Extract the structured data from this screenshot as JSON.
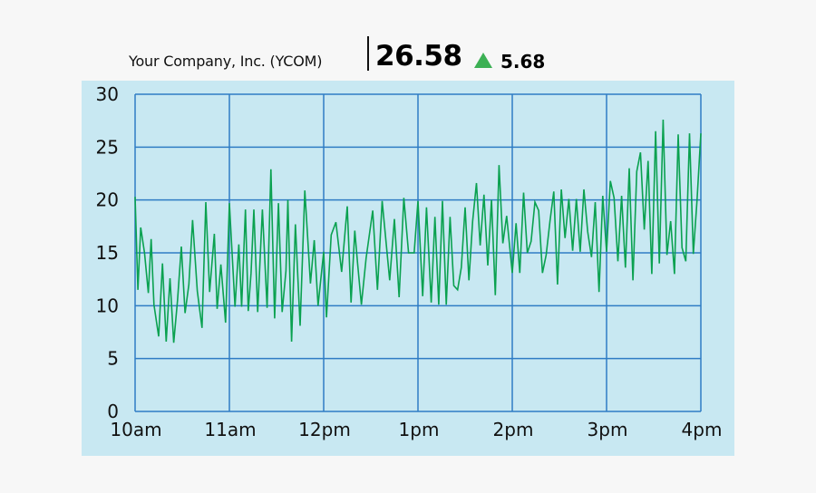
{
  "header": {
    "company": "Your Company, Inc. (YCOM)",
    "price": "26.58",
    "change": "5.68",
    "change_direction_icon": "triangle-up-icon",
    "change_color": "#3cb054"
  },
  "colors": {
    "panel_bg": "#c8e8f2",
    "grid": "#2f7cc4",
    "line": "#0aa150",
    "page_bg": "#f7f7f7"
  },
  "chart_data": {
    "type": "line",
    "title": "Your Company, Inc. (YCOM) 26.58 ▲ 5.68",
    "xlabel": "",
    "ylabel": "",
    "ylim": [
      0,
      30
    ],
    "xlim": [
      0,
      6
    ],
    "y_ticks": [
      "0",
      "5",
      "10",
      "15",
      "20",
      "25",
      "30"
    ],
    "x_ticks": [
      "10am",
      "11am",
      "12pm",
      "1pm",
      "2pm",
      "3pm",
      "4pm"
    ],
    "grid": true,
    "legend": null,
    "series": [
      {
        "name": "YCOM",
        "x": [
          0.0,
          0.03,
          0.06,
          0.1,
          0.14,
          0.17,
          0.2,
          0.25,
          0.29,
          0.33,
          0.37,
          0.41,
          0.45,
          0.49,
          0.53,
          0.57,
          0.61,
          0.66,
          0.71,
          0.75,
          0.79,
          0.84,
          0.87,
          0.91,
          0.96,
          1.0,
          1.06,
          1.1,
          1.13,
          1.17,
          1.2,
          1.23,
          1.26,
          1.3,
          1.35,
          1.4,
          1.44,
          1.48,
          1.52,
          1.56,
          1.6,
          1.62,
          1.66,
          1.7,
          1.75,
          1.8,
          1.86,
          1.9,
          1.94,
          2.0,
          2.03,
          2.08,
          2.13,
          2.19,
          2.25,
          2.29,
          2.33,
          2.36,
          2.4,
          2.45,
          2.52,
          2.57,
          2.62,
          2.7,
          2.75,
          2.8,
          2.85,
          2.9,
          2.96,
          3.0,
          3.05,
          3.09,
          3.14,
          3.18,
          3.22,
          3.26,
          3.3,
          3.34,
          3.38,
          3.42,
          3.46,
          3.5,
          3.54,
          3.58,
          3.62,
          3.66,
          3.7,
          3.74,
          3.78,
          3.82,
          3.86,
          3.9,
          3.94,
          4.0,
          4.04,
          4.08,
          4.12,
          4.16,
          4.2,
          4.24,
          4.28,
          4.32,
          4.36,
          4.4,
          4.44,
          4.48,
          4.52,
          4.56,
          4.6,
          4.64,
          4.68,
          4.72,
          4.76,
          4.8,
          4.84,
          4.88,
          4.92,
          4.96,
          5.0,
          5.04,
          5.08,
          5.12,
          5.16,
          5.2,
          5.24,
          5.28,
          5.32,
          5.36,
          5.4,
          5.44,
          5.48,
          5.52,
          5.56,
          5.6,
          5.64,
          5.68,
          5.72,
          5.76,
          5.8,
          5.84,
          5.88,
          5.92,
          5.96,
          6.0
        ],
        "values": [
          20.3,
          11.5,
          17.4,
          15.0,
          11.2,
          16.3,
          10.1,
          7.1,
          14.0,
          6.6,
          12.6,
          6.5,
          10.5,
          15.6,
          9.3,
          12.0,
          18.1,
          11.4,
          7.9,
          19.8,
          11.3,
          16.8,
          9.7,
          13.9,
          8.4,
          19.7,
          9.9,
          15.8,
          9.9,
          19.1,
          9.5,
          13.1,
          19.1,
          9.4,
          19.1,
          9.8,
          22.9,
          8.8,
          19.7,
          9.4,
          13.3,
          20.0,
          6.6,
          17.7,
          8.1,
          20.9,
          12.1,
          16.2,
          10.0,
          15.1,
          8.9,
          16.7,
          17.9,
          13.2,
          19.4,
          10.3,
          17.1,
          14.0,
          10.1,
          14.5,
          19.0,
          11.5,
          19.9,
          12.4,
          18.2,
          10.8,
          20.2,
          15.0,
          15.0,
          19.9,
          10.9,
          19.3,
          10.3,
          18.4,
          10.1,
          19.9,
          10.1,
          18.4,
          11.9,
          11.5,
          13.6,
          19.3,
          12.4,
          18.0,
          21.6,
          15.7,
          20.5,
          13.8,
          20.0,
          11.0,
          23.3,
          15.9,
          18.5,
          13.1,
          17.8,
          13.1,
          20.7,
          15.0,
          16.1,
          19.8,
          19.0,
          13.1,
          14.8,
          18.0,
          20.8,
          12.0,
          21.0,
          16.4,
          20.1,
          15.2,
          20.1,
          15.1,
          21.0,
          17.0,
          14.6,
          19.8,
          11.3,
          20.4,
          15.1,
          21.8,
          20.2,
          14.2,
          20.4,
          13.6,
          23.0,
          12.4,
          22.7,
          24.5,
          17.2,
          23.7,
          13.0,
          26.5,
          14.0,
          27.6,
          14.8,
          18.0,
          13.0,
          26.2,
          15.5,
          14.2,
          26.3,
          14.9,
          20.0,
          26.3
        ]
      }
    ]
  }
}
